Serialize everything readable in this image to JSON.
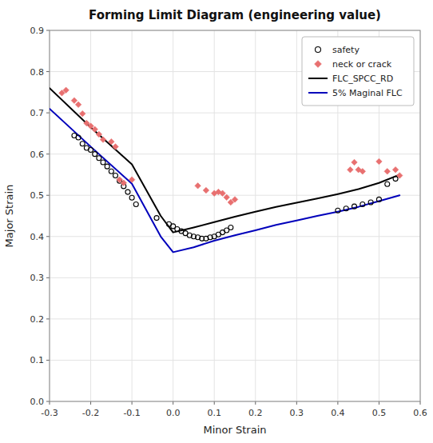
{
  "chart_data": {
    "type": "scatter",
    "title": "Forming Limit Diagram (engineering value)",
    "x_label": "Minor Strain",
    "y_label": "Major Strain",
    "xlim": [
      -0.3,
      0.6
    ],
    "ylim": [
      0.0,
      0.9
    ],
    "xticks": [
      -0.3,
      -0.2,
      -0.1,
      {
        "value": 0.0,
        "label": "0.0"
      },
      0.1,
      0.2,
      0.3,
      0.4,
      0.5,
      0.6
    ],
    "yticks": [
      {
        "value": 0.0,
        "label": "0.0"
      },
      0.1,
      0.2,
      0.3,
      0.4,
      0.5,
      0.6,
      0.7,
      0.8,
      0.9
    ],
    "grid": true,
    "legend": "upper right",
    "series": [
      {
        "name": "safety",
        "type": "scatter",
        "marker": "open-circle",
        "color": "#000000",
        "x": [
          -0.24,
          -0.23,
          -0.22,
          -0.21,
          -0.2,
          -0.19,
          -0.18,
          -0.17,
          -0.16,
          -0.15,
          -0.14,
          -0.13,
          -0.12,
          -0.11,
          -0.1,
          -0.09,
          -0.04,
          -0.01,
          0.0,
          0.01,
          0.02,
          0.03,
          0.04,
          0.05,
          0.06,
          0.07,
          0.08,
          0.09,
          0.1,
          0.11,
          0.12,
          0.13,
          0.14,
          0.4,
          0.42,
          0.44,
          0.46,
          0.48,
          0.5,
          0.52,
          0.54
        ],
        "values": [
          0.645,
          0.64,
          0.625,
          0.615,
          0.61,
          0.6,
          0.59,
          0.58,
          0.57,
          0.558,
          0.548,
          0.535,
          0.522,
          0.508,
          0.494,
          0.478,
          0.445,
          0.43,
          0.425,
          0.418,
          0.413,
          0.408,
          0.403,
          0.4,
          0.398,
          0.395,
          0.395,
          0.398,
          0.4,
          0.405,
          0.41,
          0.415,
          0.422,
          0.463,
          0.468,
          0.473,
          0.478,
          0.483,
          0.49,
          0.527,
          0.54
        ]
      },
      {
        "name": "neck or crack",
        "type": "scatter",
        "marker": "diamond",
        "color": "#E87070",
        "x": [
          -0.27,
          -0.26,
          -0.24,
          -0.23,
          -0.22,
          -0.21,
          -0.2,
          -0.19,
          -0.18,
          -0.17,
          -0.15,
          -0.14,
          -0.13,
          -0.12,
          -0.1,
          0.06,
          0.08,
          0.1,
          0.11,
          0.12,
          0.13,
          0.14,
          0.15,
          0.43,
          0.44,
          0.45,
          0.46,
          0.5,
          0.52,
          0.54,
          0.55
        ],
        "values": [
          0.748,
          0.755,
          0.73,
          0.72,
          0.698,
          0.675,
          0.668,
          0.66,
          0.648,
          0.635,
          0.63,
          0.618,
          0.538,
          0.53,
          0.538,
          0.523,
          0.512,
          0.505,
          0.508,
          0.505,
          0.495,
          0.483,
          0.49,
          0.562,
          0.58,
          0.562,
          0.558,
          0.582,
          0.558,
          0.562,
          0.548
        ]
      },
      {
        "name": "FLC_SPCC_RD",
        "type": "line",
        "line_style": "solid",
        "color": "#000000",
        "x": [
          -0.3,
          -0.2,
          -0.1,
          -0.03,
          0.0,
          0.05,
          0.1,
          0.15,
          0.2,
          0.25,
          0.3,
          0.35,
          0.4,
          0.45,
          0.5,
          0.55
        ],
        "values": [
          0.76,
          0.665,
          0.575,
          0.45,
          0.41,
          0.422,
          0.435,
          0.448,
          0.46,
          0.472,
          0.482,
          0.492,
          0.503,
          0.515,
          0.53,
          0.55
        ]
      },
      {
        "name": "5% Maginal FLC",
        "type": "line",
        "line_style": "solid",
        "color": "#0000BB",
        "x": [
          -0.3,
          -0.2,
          -0.1,
          -0.03,
          0.0,
          0.05,
          0.1,
          0.15,
          0.2,
          0.25,
          0.3,
          0.35,
          0.4,
          0.45,
          0.5,
          0.55
        ],
        "values": [
          0.71,
          0.618,
          0.528,
          0.4,
          0.362,
          0.374,
          0.39,
          0.403,
          0.415,
          0.428,
          0.439,
          0.45,
          0.46,
          0.472,
          0.486,
          0.5
        ]
      }
    ]
  }
}
